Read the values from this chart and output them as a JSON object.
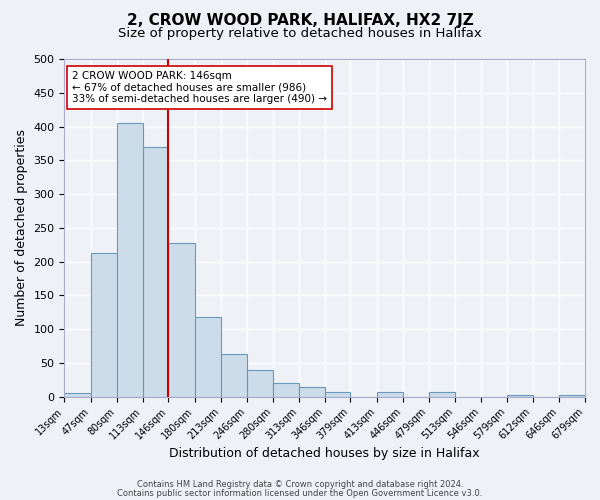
{
  "title": "2, CROW WOOD PARK, HALIFAX, HX2 7JZ",
  "subtitle": "Size of property relative to detached houses in Halifax",
  "xlabel": "Distribution of detached houses by size in Halifax",
  "ylabel": "Number of detached properties",
  "bin_edges": [
    13,
    47,
    80,
    113,
    146,
    180,
    213,
    246,
    280,
    313,
    346,
    379,
    413,
    446,
    479,
    513,
    546,
    579,
    612,
    646,
    679
  ],
  "bin_labels": [
    "13sqm",
    "47sqm",
    "80sqm",
    "113sqm",
    "146sqm",
    "180sqm",
    "213sqm",
    "246sqm",
    "280sqm",
    "313sqm",
    "346sqm",
    "379sqm",
    "413sqm",
    "446sqm",
    "479sqm",
    "513sqm",
    "546sqm",
    "579sqm",
    "612sqm",
    "646sqm",
    "679sqm"
  ],
  "counts": [
    5,
    213,
    405,
    370,
    228,
    118,
    63,
    40,
    20,
    14,
    7,
    0,
    7,
    0,
    7,
    0,
    0,
    2,
    0,
    2
  ],
  "bar_color": "#ccdce8",
  "bar_edge_color": "#6699bb",
  "vline_x": 146,
  "vline_color": "#cc0000",
  "ylim": [
    0,
    500
  ],
  "yticks": [
    0,
    50,
    100,
    150,
    200,
    250,
    300,
    350,
    400,
    450,
    500
  ],
  "annotation_title": "2 CROW WOOD PARK: 146sqm",
  "annotation_line1": "← 67% of detached houses are smaller (986)",
  "annotation_line2": "33% of semi-detached houses are larger (490) →",
  "footer1": "Contains HM Land Registry data © Crown copyright and database right 2024.",
  "footer2": "Contains public sector information licensed under the Open Government Licence v3.0.",
  "bg_color": "#eef2f7",
  "grid_color": "#ffffff",
  "title_fontsize": 11,
  "subtitle_fontsize": 9.5
}
